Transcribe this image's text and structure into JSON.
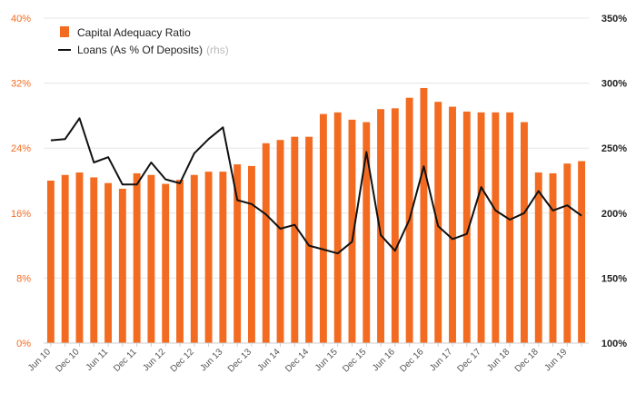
{
  "chart_data": {
    "type": "bar",
    "title": "",
    "xlabel": "",
    "ylabel": "",
    "left_axis": {
      "ylim": [
        0,
        40
      ],
      "ticks": [
        0,
        8,
        16,
        24,
        32,
        40
      ],
      "tick_labels": [
        "0%",
        "8%",
        "16%",
        "24%",
        "32%",
        "40%"
      ]
    },
    "right_axis": {
      "ylim": [
        100,
        350
      ],
      "ticks": [
        100,
        150,
        200,
        250,
        300,
        350
      ],
      "tick_labels": [
        "100%",
        "150%",
        "200%",
        "250%",
        "300%",
        "350%"
      ]
    },
    "categories": [
      "Jun 10",
      "Sep 10",
      "Dec 10",
      "Mar 11",
      "Jun 11",
      "Sep 11",
      "Dec 11",
      "Mar 12",
      "Jun 12",
      "Sep 12",
      "Dec 12",
      "Mar 13",
      "Jun 13",
      "Sep 13",
      "Dec 13",
      "Mar 14",
      "Jun 14",
      "Sep 14",
      "Dec 14",
      "Mar 15",
      "Jun 15",
      "Sep 15",
      "Dec 15",
      "Mar 16",
      "Jun 16",
      "Sep 16",
      "Dec 16",
      "Mar 17",
      "Jun 17",
      "Sep 17",
      "Dec 17",
      "Mar 18",
      "Jun 18",
      "Sep 18",
      "Dec 18",
      "Mar 19",
      "Jun 19",
      "Sep 19"
    ],
    "x_tick_labels": [
      "Jun 10",
      "Dec 10",
      "Jun 11",
      "Dec 11",
      "Jun 12",
      "Dec 12",
      "Jun 13",
      "Dec 13",
      "Jun 14",
      "Dec 14",
      "Jun 15",
      "Dec 15",
      "Jun 16",
      "Dec 16",
      "Jun 17",
      "Dec 17",
      "Jun 18",
      "Dec 18",
      "Jun 19"
    ],
    "series": [
      {
        "name": "Capital Adequacy Ratio",
        "kind": "bar",
        "axis": "left",
        "color": "#f26b21",
        "values": [
          20.0,
          20.7,
          21.0,
          20.4,
          19.7,
          19.0,
          20.9,
          20.7,
          19.6,
          20.1,
          20.7,
          21.1,
          21.1,
          22.0,
          21.8,
          24.6,
          25.0,
          25.4,
          25.4,
          28.2,
          28.4,
          27.5,
          27.2,
          28.8,
          28.9,
          30.2,
          31.4,
          29.7,
          29.1,
          28.5,
          28.4,
          28.4,
          28.4,
          27.2,
          21.0,
          20.9,
          22.1,
          22.4
        ]
      },
      {
        "name": "Loans (As % Of Deposits)",
        "kind": "line",
        "axis": "right",
        "color": "#111111",
        "values": [
          256,
          257,
          273,
          239,
          243,
          222,
          222,
          239,
          226,
          223,
          246,
          257,
          266,
          210,
          207,
          199,
          188,
          191,
          175,
          172,
          169,
          178,
          247,
          183,
          171,
          195,
          236,
          190,
          180,
          184,
          220,
          202,
          195,
          200,
          217,
          202,
          206,
          198
        ]
      }
    ],
    "legend": {
      "position": "top-left",
      "items": [
        {
          "label": "Capital Adequacy Ratio",
          "note": ""
        },
        {
          "label": "Loans (As % Of Deposits)",
          "note": "(rhs)"
        }
      ]
    }
  }
}
